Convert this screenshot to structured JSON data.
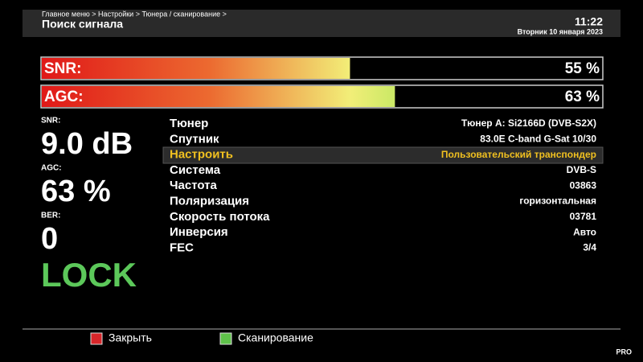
{
  "header": {
    "breadcrumb": "Главное меню > Настройки > Тюнера / сканирование >",
    "title": "Поиск сигнала",
    "time": "11:22",
    "date": "Вторник 10 января 2023"
  },
  "bars": [
    {
      "name": "SNR:",
      "value": 55,
      "label": "55 %"
    },
    {
      "name": "AGC:",
      "value": 63,
      "label": "63 %"
    }
  ],
  "bar_range": [
    0,
    100
  ],
  "status": [
    {
      "name": "SNR:",
      "value": "9.0 dB"
    },
    {
      "name": "AGC:",
      "value": "63 %"
    },
    {
      "name": "BER:",
      "value": "0"
    }
  ],
  "lock": "LOCK",
  "settings": {
    "selected": 2,
    "rows": [
      [
        "Тюнер",
        "Тюнер A: Si2166D (DVB-S2X)"
      ],
      [
        "Спутник",
        "83.0E C-band G-Sat 10/30"
      ],
      [
        "Настроить",
        "Пользовательский транспондер"
      ],
      [
        "Система",
        "DVB-S"
      ],
      [
        "Частота",
        "03863"
      ],
      [
        "Поляризация",
        "горизонтальная"
      ],
      [
        "Скорость потока",
        "03781"
      ],
      [
        "Инверсия",
        "Авто"
      ],
      [
        "FEC",
        "3/4"
      ]
    ]
  },
  "buttons": [
    {
      "label": "Закрыть",
      "color": "#d8262a"
    },
    {
      "label": "Сканирование",
      "color": "#5fc24a"
    }
  ],
  "logo": "PRO"
}
